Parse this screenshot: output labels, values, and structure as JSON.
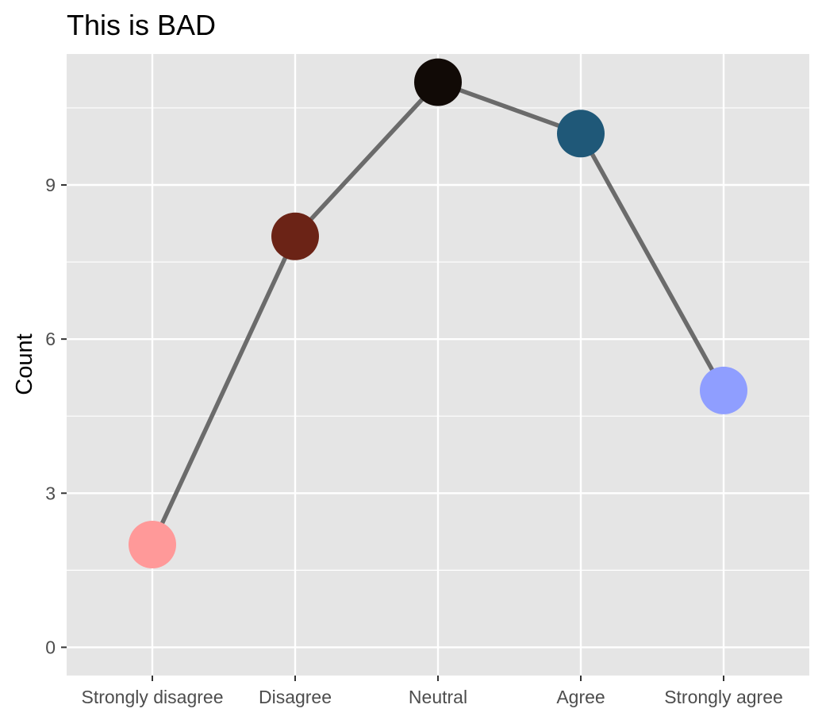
{
  "chart_data": {
    "type": "line",
    "title": "This is BAD",
    "xlabel": "",
    "ylabel": "Count",
    "categories": [
      "Strongly disagree",
      "Disagree",
      "Neutral",
      "Agree",
      "Strongly agree"
    ],
    "values": [
      2,
      8,
      11,
      10,
      5
    ],
    "point_colors": [
      "#ff9999",
      "#6b2316",
      "#110a06",
      "#1f5878",
      "#8f9eff"
    ],
    "line_color": "#6b6b6b",
    "panel_background": "#e5e5e5",
    "grid_color": "#ffffff",
    "ylim": [
      -0.55,
      11.55
    ],
    "y_ticks": [
      0,
      3,
      6,
      9
    ],
    "y_tick_labels": [
      "0",
      "3",
      "6",
      "9"
    ],
    "grid": true,
    "legend": "none"
  }
}
